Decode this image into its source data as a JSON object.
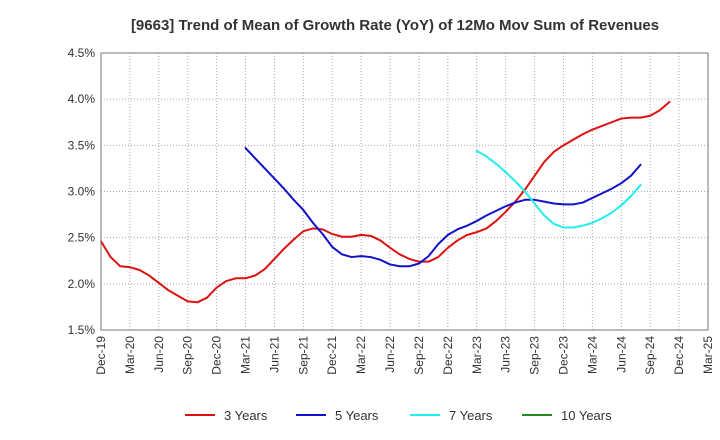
{
  "chart_data": {
    "type": "line",
    "title": "[9663]  Trend of Mean of Growth Rate (YoY) of 12Mo Mov Sum of Revenues",
    "xlabel": "",
    "ylabel": "",
    "ylim": [
      1.5,
      4.5
    ],
    "y_ticks": [
      1.5,
      2.0,
      2.5,
      3.0,
      3.5,
      4.0,
      4.5
    ],
    "y_tick_labels": [
      "1.5%",
      "2.0%",
      "2.5%",
      "3.0%",
      "3.5%",
      "4.0%",
      "4.5%"
    ],
    "x_tick_labels": [
      "Dec-19",
      "Mar-20",
      "Jun-20",
      "Sep-20",
      "Dec-20",
      "Mar-21",
      "Jun-21",
      "Sep-21",
      "Dec-21",
      "Mar-22",
      "Jun-22",
      "Sep-22",
      "Dec-22",
      "Mar-23",
      "Jun-23",
      "Sep-23",
      "Dec-23",
      "Mar-24",
      "Jun-24",
      "Sep-24",
      "Dec-24",
      "Mar-25"
    ],
    "x_start": "Dec-19",
    "x_months": 63,
    "grid": true,
    "legend_position": "bottom",
    "series": [
      {
        "name": "3 Years",
        "color": "#dd1111",
        "start_month": 0,
        "values": [
          2.46,
          2.29,
          2.19,
          2.18,
          2.15,
          2.09,
          2.01,
          1.93,
          1.87,
          1.81,
          1.8,
          1.85,
          1.96,
          2.03,
          2.06,
          2.06,
          2.09,
          2.16,
          2.27,
          2.38,
          2.48,
          2.57,
          2.6,
          2.59,
          2.54,
          2.51,
          2.51,
          2.53,
          2.52,
          2.47,
          2.39,
          2.32,
          2.27,
          2.24,
          2.24,
          2.29,
          2.39,
          2.47,
          2.53,
          2.56,
          2.6,
          2.68,
          2.78,
          2.89,
          3.02,
          3.17,
          3.32,
          3.43,
          3.5,
          3.56,
          3.62,
          3.67,
          3.71,
          3.75,
          3.79,
          3.8,
          3.8,
          3.82,
          3.88,
          3.97
        ]
      },
      {
        "name": "5 Years",
        "color": "#1111cc",
        "start_month": 15,
        "values": [
          3.47,
          3.36,
          3.25,
          3.14,
          3.03,
          2.91,
          2.8,
          2.66,
          2.54,
          2.4,
          2.32,
          2.29,
          2.3,
          2.29,
          2.26,
          2.21,
          2.19,
          2.19,
          2.22,
          2.3,
          2.43,
          2.53,
          2.59,
          2.63,
          2.68,
          2.74,
          2.79,
          2.84,
          2.88,
          2.91,
          2.91,
          2.89,
          2.87,
          2.86,
          2.86,
          2.88,
          2.93,
          2.98,
          3.03,
          3.09,
          3.17,
          3.29
        ]
      },
      {
        "name": "7 Years",
        "color": "#22eeee",
        "start_month": 39,
        "values": [
          3.44,
          3.38,
          3.3,
          3.21,
          3.11,
          3.0,
          2.87,
          2.74,
          2.65,
          2.61,
          2.61,
          2.63,
          2.66,
          2.71,
          2.77,
          2.85,
          2.95,
          3.07
        ]
      },
      {
        "name": "10 Years",
        "color": "#228822",
        "start_month": 0,
        "values": []
      }
    ]
  }
}
